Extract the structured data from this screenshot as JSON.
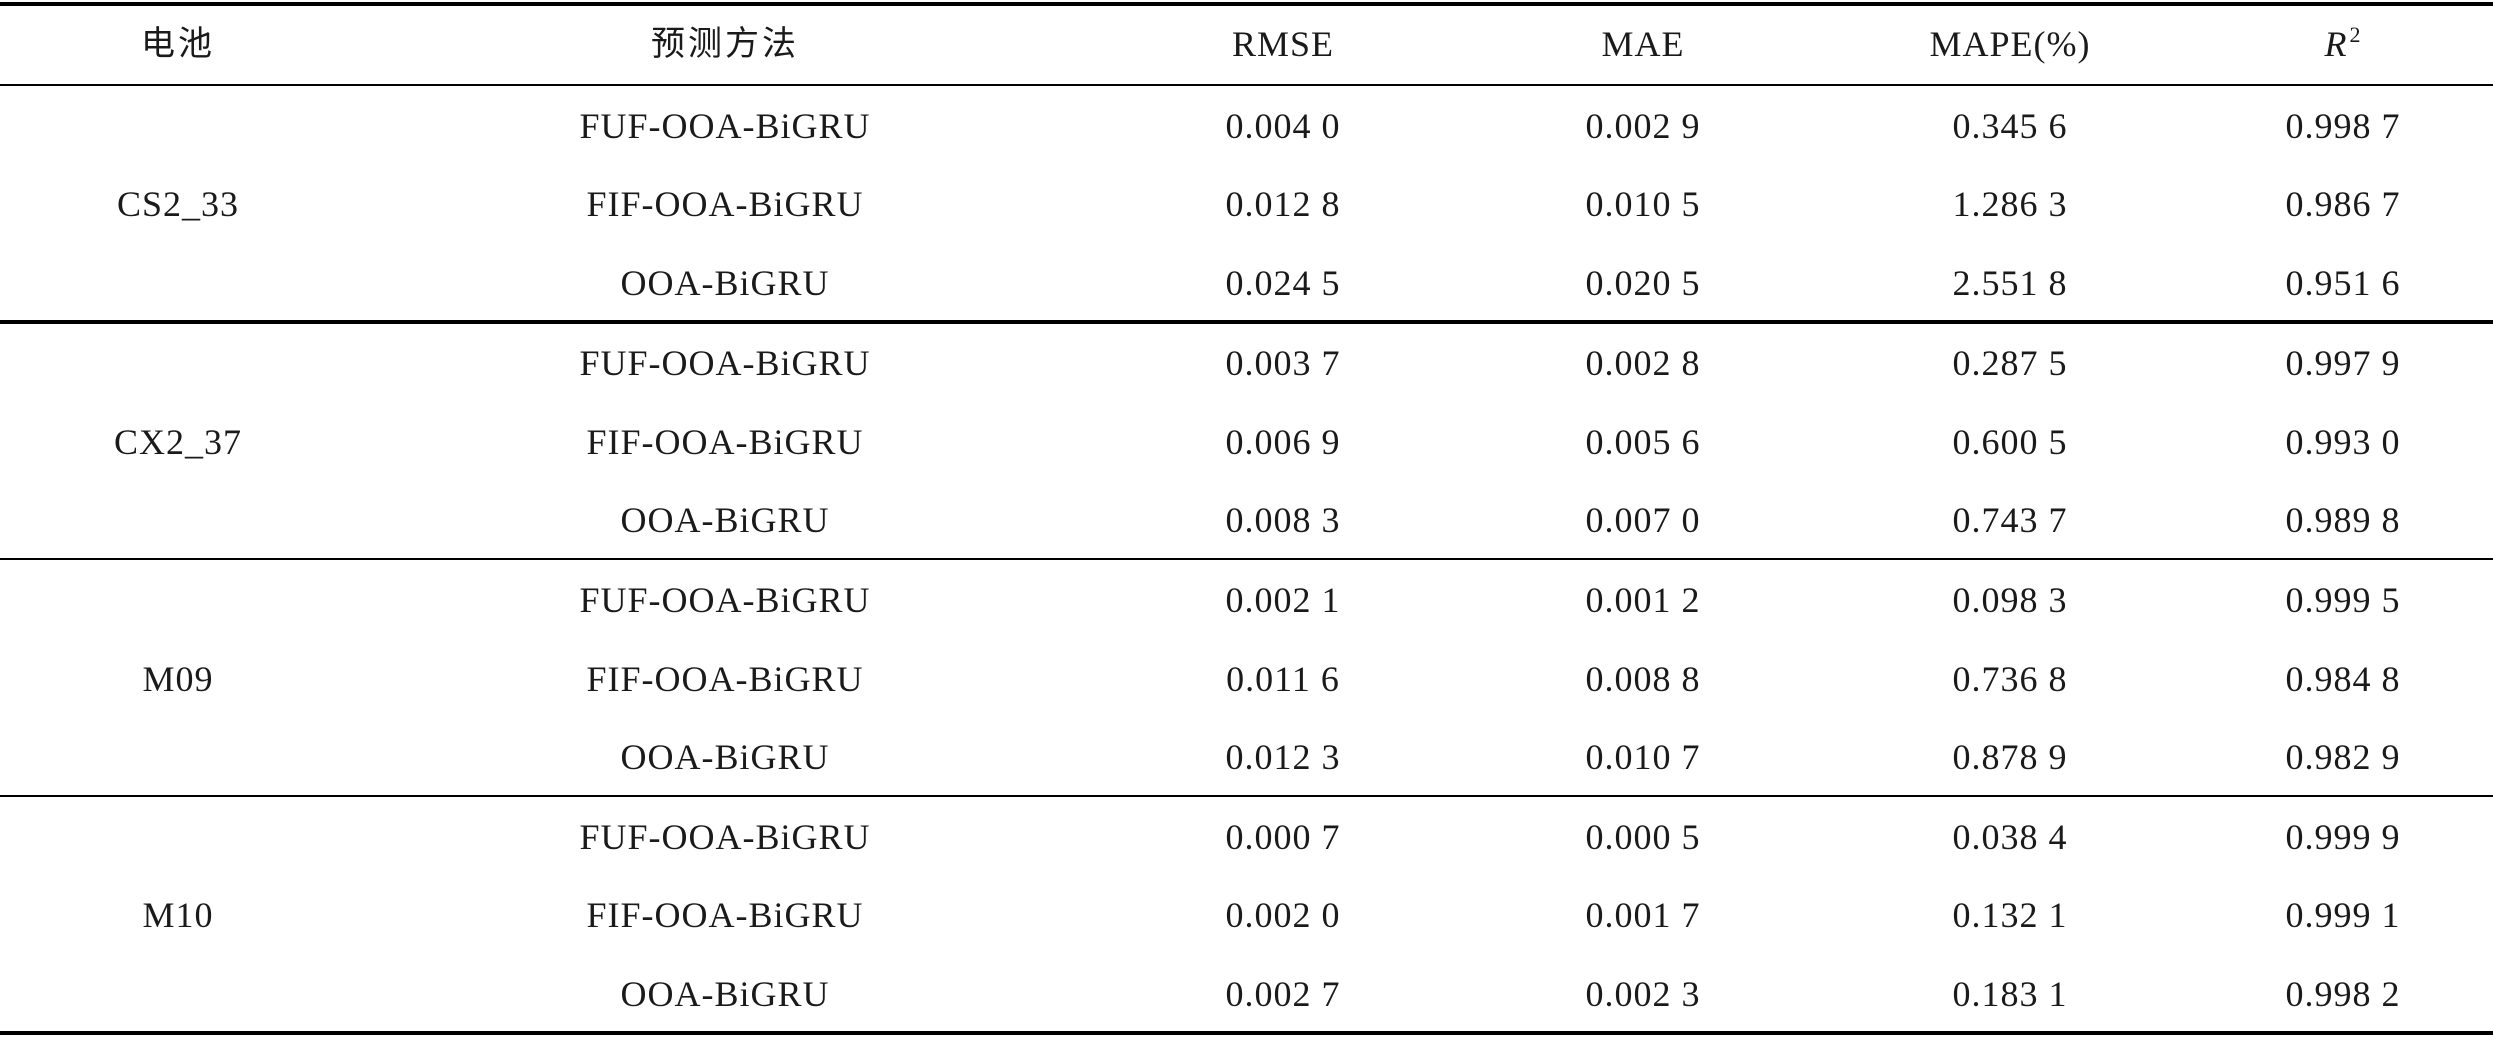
{
  "headers": {
    "battery": "电池",
    "method": "预测方法",
    "rmse": "RMSE",
    "mae": "MAE",
    "mape": "MAPE(%)",
    "r2_letter": "R",
    "r2_exp": "2"
  },
  "groups": [
    {
      "battery": "CS2_33",
      "rows": [
        {
          "method": "FUF-OOA-BiGRU",
          "rmse": "0.004 0",
          "mae": "0.002 9",
          "mape": "0.345 6",
          "r2": "0.998 7"
        },
        {
          "method": "FIF-OOA-BiGRU",
          "rmse": "0.012 8",
          "mae": "0.010 5",
          "mape": "1.286 3",
          "r2": "0.986 7"
        },
        {
          "method": "OOA-BiGRU",
          "rmse": "0.024 5",
          "mae": "0.020 5",
          "mape": "2.551 8",
          "r2": "0.951 6"
        }
      ]
    },
    {
      "battery": "CX2_37",
      "rows": [
        {
          "method": "FUF-OOA-BiGRU",
          "rmse": "0.003 7",
          "mae": "0.002 8",
          "mape": "0.287 5",
          "r2": "0.997 9"
        },
        {
          "method": "FIF-OOA-BiGRU",
          "rmse": "0.006 9",
          "mae": "0.005 6",
          "mape": "0.600 5",
          "r2": "0.993 0"
        },
        {
          "method": "OOA-BiGRU",
          "rmse": "0.008 3",
          "mae": "0.007 0",
          "mape": "0.743 7",
          "r2": "0.989 8"
        }
      ]
    },
    {
      "battery": "M09",
      "rows": [
        {
          "method": "FUF-OOA-BiGRU",
          "rmse": "0.002 1",
          "mae": "0.001 2",
          "mape": "0.098 3",
          "r2": "0.999 5"
        },
        {
          "method": "FIF-OOA-BiGRU",
          "rmse": "0.011 6",
          "mae": "0.008 8",
          "mape": "0.736 8",
          "r2": "0.984 8"
        },
        {
          "method": "OOA-BiGRU",
          "rmse": "0.012 3",
          "mae": "0.010 7",
          "mape": "0.878 9",
          "r2": "0.982 9"
        }
      ]
    },
    {
      "battery": "M10",
      "rows": [
        {
          "method": "FUF-OOA-BiGRU",
          "rmse": "0.000 7",
          "mae": "0.000 5",
          "mape": "0.038 4",
          "r2": "0.999 9"
        },
        {
          "method": "FIF-OOA-BiGRU",
          "rmse": "0.002 0",
          "mae": "0.001 7",
          "mape": "0.132 1",
          "r2": "0.999 1"
        },
        {
          "method": "OOA-BiGRU",
          "rmse": "0.002 7",
          "mae": "0.002 3",
          "mape": "0.183 1",
          "r2": "0.998 2"
        }
      ]
    }
  ]
}
